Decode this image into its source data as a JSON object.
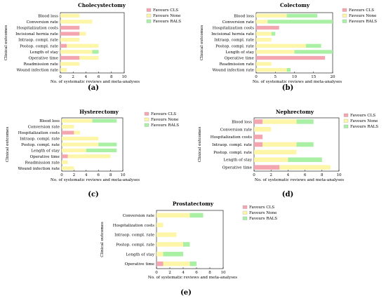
{
  "colors": {
    "cls": "#f4a6b0",
    "none": "#fdf6a8",
    "rals": "#a9f0a5"
  },
  "chart_data": [
    {
      "type": "bar",
      "stacked": true,
      "orientation": "horizontal",
      "panel": "(a)",
      "title": "Cholecystectomy",
      "xlabel": "No. of systematic reviews and meta-analyses",
      "ylabel": "Clinical outcomes",
      "xlim": [
        0,
        10
      ],
      "xticks": [
        "0",
        "2",
        "4",
        "6",
        "8",
        "10"
      ],
      "legend": "top-right",
      "categories": [
        "Blood loss",
        "Conversion rate",
        "Hospitalization costs",
        "Incisional hernia rate",
        "Intraop. compl. rate",
        "Postop. compl. rate",
        "Length of stay",
        "Operative time",
        "Readmission rate",
        "Wound infection rate"
      ],
      "series": [
        {
          "name": "Favours CLS",
          "values": [
            0,
            0,
            3,
            3,
            0,
            1,
            0,
            3,
            0,
            0
          ]
        },
        {
          "name": "Favours None",
          "values": [
            3,
            5,
            0,
            1,
            3,
            5,
            5,
            3,
            3,
            1
          ]
        },
        {
          "name": "Favours RALS",
          "values": [
            0,
            0,
            0,
            0,
            0,
            0,
            1,
            0,
            0,
            0
          ]
        }
      ]
    },
    {
      "type": "bar",
      "stacked": true,
      "orientation": "horizontal",
      "panel": "(b)",
      "title": "Colectomy",
      "xlabel": "No. of systematic reviews and meta-analyses",
      "ylabel": "Clinical outcomes",
      "xlim": [
        0,
        20
      ],
      "xticks": [
        "0",
        "5",
        "10",
        "15",
        "20"
      ],
      "legend": "top-right",
      "categories": [
        "Blood loss",
        "Conversion rate",
        "Hospitalization costs",
        "Incisional hernia rate",
        "Intraop. compl. rate",
        "Postop. compl. rate",
        "Length of stay",
        "Operative time",
        "Readmission rate",
        "Wound infection rate"
      ],
      "series": [
        {
          "name": "Favours CLS",
          "values": [
            0,
            0,
            6,
            0,
            0,
            0,
            0,
            18,
            0,
            0
          ]
        },
        {
          "name": "Favours None",
          "values": [
            8,
            3,
            0,
            4,
            4,
            13,
            10,
            0,
            4,
            8
          ]
        },
        {
          "name": "Favours RALS",
          "values": [
            8,
            17,
            0,
            1,
            0,
            4,
            10,
            0,
            0,
            1
          ]
        }
      ]
    },
    {
      "type": "bar",
      "stacked": true,
      "orientation": "horizontal",
      "panel": "(c)",
      "title": "Hysterectomy",
      "xlabel": "No. of systematic reviews and meta-analyses",
      "ylabel": "Clinical outcomes",
      "xlim": [
        0,
        10
      ],
      "xticks": [
        "0",
        "2",
        "4",
        "6",
        "8",
        "10"
      ],
      "legend": "top-right",
      "categories": [
        "Blood loss",
        "Conversion rate",
        "Hospitalization costs",
        "Intraop. compl. rate",
        "Postop. compl. rate",
        "Length of stay",
        "Operative time",
        "Readmission rate",
        "Wound infection rate"
      ],
      "series": [
        {
          "name": "Favours CLS",
          "values": [
            0,
            0,
            2,
            0,
            0,
            0,
            1,
            0,
            0
          ]
        },
        {
          "name": "Favours None",
          "values": [
            5,
            2,
            1,
            6,
            6,
            4,
            7,
            1,
            2
          ]
        },
        {
          "name": "Favours RALS",
          "values": [
            4,
            0,
            0,
            0,
            3,
            5,
            0,
            0,
            0
          ]
        }
      ]
    },
    {
      "type": "bar",
      "stacked": true,
      "orientation": "horizontal",
      "panel": "(d)",
      "title": "Nephrectomy",
      "xlabel": "No. of systematic reviews and meta-analyses",
      "ylabel": "Clinical outcomes",
      "xlim": [
        0,
        10
      ],
      "xticks": [
        "0",
        "2",
        "4",
        "6",
        "8",
        "10"
      ],
      "legend": "top-right",
      "categories": [
        "Blood loss",
        "Conversion rate",
        "Hospitalization costs",
        "Intraop. compl. rate",
        "Postop. compl. rate",
        "Length of stay",
        "Operative time"
      ],
      "series": [
        {
          "name": "Favours CLS",
          "values": [
            1,
            0,
            1,
            1,
            0,
            0,
            3
          ]
        },
        {
          "name": "Favours None",
          "values": [
            4,
            2,
            0,
            4,
            5,
            4,
            6
          ]
        },
        {
          "name": "Favours RALS",
          "values": [
            2,
            0,
            0,
            2,
            0,
            4,
            0
          ]
        }
      ]
    },
    {
      "type": "bar",
      "stacked": true,
      "orientation": "horizontal",
      "panel": "(e)",
      "title": "Prostatectomy",
      "xlabel": "No. of systematic reviews and meta-analyses",
      "ylabel": "Clinical outcomes",
      "xlim": [
        0,
        10
      ],
      "xticks": [
        "0",
        "2",
        "4",
        "6",
        "8",
        "10"
      ],
      "legend": "top-right",
      "categories": [
        "Conversion rate",
        "Hospitalization costs",
        "Intraop. compl. rate",
        "Postop. compl. rate",
        "Length of stay",
        "Operative time"
      ],
      "series": [
        {
          "name": "Favours CLS",
          "values": [
            0,
            0,
            0,
            0,
            0,
            1
          ]
        },
        {
          "name": "Favours None",
          "values": [
            5,
            1,
            3,
            4,
            1,
            4
          ]
        },
        {
          "name": "Favours RALS",
          "values": [
            2,
            0,
            0,
            1,
            3,
            1
          ]
        }
      ]
    }
  ]
}
